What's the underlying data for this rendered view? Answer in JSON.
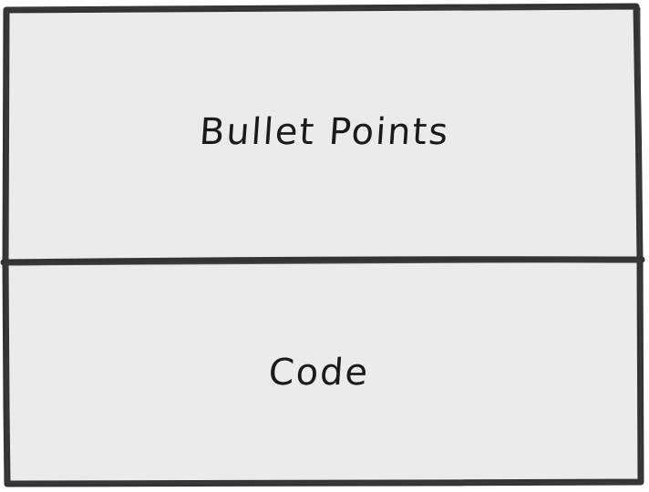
{
  "panels": [
    {
      "label": "Bullet Points"
    },
    {
      "label": "Code"
    }
  ],
  "colors": {
    "fill": "#ebebeb",
    "stroke": "#333333",
    "text": "#1a1a1a"
  }
}
